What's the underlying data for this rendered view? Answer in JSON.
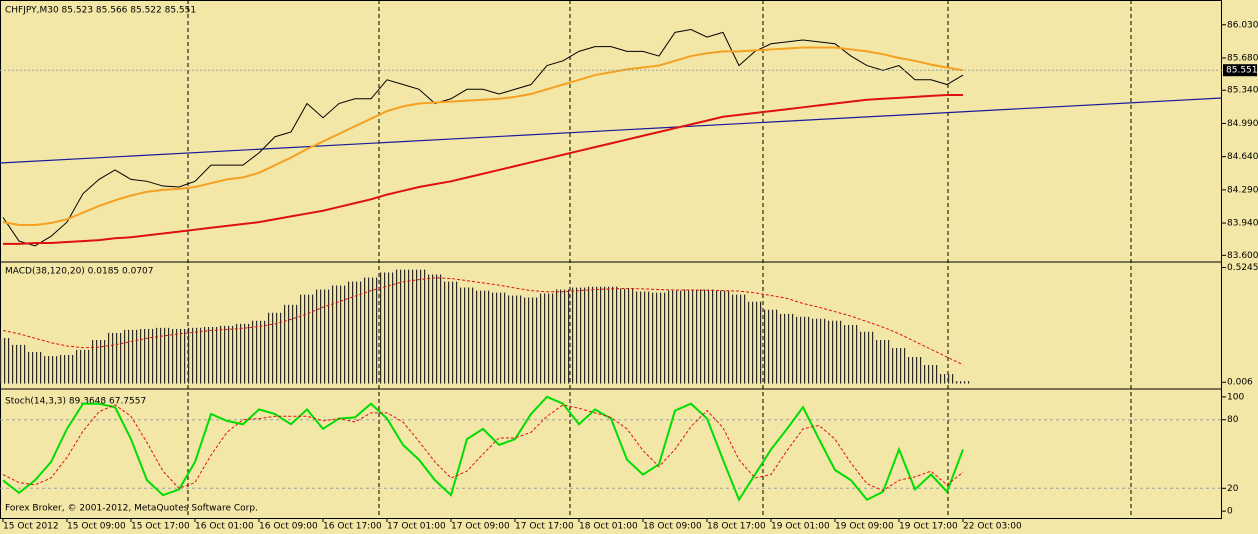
{
  "chart_data": [
    {
      "type": "line",
      "title": "CHFJPY,M30  85.523 85.566 85.522 85.551",
      "footer": "Forex Broker, © 2001-2012, MetaQuotes Software Corp.",
      "categories": [
        "15 Oct 2012",
        null,
        null,
        null,
        "15 Oct 09:00",
        null,
        null,
        null,
        "15 Oct 17:00",
        null,
        null,
        null,
        "16 Oct 01:00",
        null,
        null,
        null,
        "16 Oct 09:00",
        null,
        null,
        null,
        "16 Oct 17:00",
        null,
        null,
        null,
        "17 Oct 01:00",
        null,
        null,
        null,
        "17 Oct 09:00",
        null,
        null,
        null,
        "17 Oct 17:00",
        null,
        null,
        null,
        "18 Oct 01:00",
        null,
        null,
        null,
        "18 Oct 09:00",
        null,
        null,
        null,
        "18 Oct 17:00",
        null,
        null,
        null,
        "19 Oct 01:00",
        null,
        null,
        null,
        "19 Oct 09:00",
        null,
        null,
        null,
        "19 Oct 17:00",
        null,
        null,
        null,
        "22 Oct 03:00"
      ],
      "ylim": [
        83.54,
        86.27
      ],
      "yticks": [
        {
          "value": 86.03,
          "label": "86.030"
        },
        {
          "value": 85.68,
          "label": "85.680"
        },
        {
          "value": 85.34,
          "label": "85.340"
        },
        {
          "value": 84.99,
          "label": "84.990"
        },
        {
          "value": 84.64,
          "label": "84.640"
        },
        {
          "value": 84.29,
          "label": "84.290"
        },
        {
          "value": 83.94,
          "label": "83.940"
        },
        {
          "value": 83.6,
          "label": "83.600"
        }
      ],
      "last_price": 85.551,
      "series": [
        {
          "color": "#000000",
          "values": [
            84.0,
            83.75,
            83.7,
            83.8,
            83.95,
            84.25,
            84.4,
            84.5,
            84.4,
            84.38,
            84.33,
            84.32,
            84.38,
            84.55,
            84.55,
            84.55,
            84.68,
            84.85,
            84.9,
            85.2,
            85.05,
            85.2,
            85.25,
            85.25,
            85.45,
            85.4,
            85.35,
            85.2,
            85.25,
            85.35,
            85.35,
            85.3,
            85.35,
            85.4,
            85.6,
            85.65,
            85.75,
            85.8,
            85.8,
            85.75,
            85.75,
            85.7,
            85.95,
            85.98,
            85.9,
            85.95,
            85.6,
            85.75,
            85.83,
            85.85,
            85.87,
            85.85,
            85.83,
            85.7,
            85.6,
            85.55,
            85.6,
            85.45,
            85.45,
            85.4,
            85.5
          ]
        },
        {
          "color": "#f5a020",
          "values": [
            83.95,
            83.92,
            83.92,
            83.94,
            83.98,
            84.05,
            84.12,
            84.18,
            84.23,
            84.27,
            84.29,
            84.3,
            84.32,
            84.36,
            84.4,
            84.42,
            84.47,
            84.55,
            84.63,
            84.72,
            84.8,
            84.88,
            84.96,
            85.04,
            85.12,
            85.17,
            85.2,
            85.21,
            85.22,
            85.23,
            85.24,
            85.25,
            85.27,
            85.3,
            85.35,
            85.4,
            85.45,
            85.5,
            85.53,
            85.56,
            85.58,
            85.6,
            85.65,
            85.7,
            85.73,
            85.75,
            85.75,
            85.76,
            85.77,
            85.78,
            85.79,
            85.79,
            85.79,
            85.77,
            85.75,
            85.72,
            85.68,
            85.65,
            85.61,
            85.58,
            85.55
          ]
        },
        {
          "color": "#e01010",
          "values": [
            83.72,
            83.72,
            83.73,
            83.73,
            83.74,
            83.75,
            83.76,
            83.78,
            83.79,
            83.81,
            83.83,
            83.85,
            83.87,
            83.89,
            83.91,
            83.93,
            83.95,
            83.98,
            84.01,
            84.04,
            84.07,
            84.11,
            84.15,
            84.19,
            84.24,
            84.28,
            84.32,
            84.35,
            84.38,
            84.42,
            84.46,
            84.5,
            84.54,
            84.58,
            84.62,
            84.66,
            84.7,
            84.74,
            84.78,
            84.82,
            84.86,
            84.9,
            84.94,
            84.98,
            85.02,
            85.06,
            85.08,
            85.1,
            85.12,
            85.14,
            85.16,
            85.18,
            85.2,
            85.22,
            85.24,
            85.25,
            85.26,
            85.27,
            85.28,
            85.29,
            85.29
          ]
        }
      ]
    },
    {
      "type": "bar",
      "title": "MACD(38,120,20) 0.0185 0.0707",
      "ylim": [
        -0.02,
        0.545
      ],
      "yticks": [
        0.5245,
        0.006
      ],
      "series": [
        {
          "color": "#2a2a2a",
          "kind": "bar",
          "values": [
            0.206,
            0.175,
            0.143,
            0.124,
            0.129,
            0.152,
            0.197,
            0.229,
            0.243,
            0.247,
            0.252,
            0.247,
            0.252,
            0.256,
            0.261,
            0.27,
            0.284,
            0.32,
            0.356,
            0.402,
            0.425,
            0.443,
            0.461,
            0.479,
            0.502,
            0.515,
            0.515,
            0.493,
            0.461,
            0.434,
            0.42,
            0.411,
            0.398,
            0.389,
            0.407,
            0.425,
            0.434,
            0.438,
            0.438,
            0.429,
            0.416,
            0.411,
            0.42,
            0.425,
            0.425,
            0.42,
            0.402,
            0.37,
            0.334,
            0.315,
            0.302,
            0.293,
            0.284,
            0.265,
            0.234,
            0.197,
            0.161,
            0.12,
            0.084,
            0.043,
            0.011
          ]
        },
        {
          "color": "#e01010",
          "kind": "line",
          "dashed": true,
          "values": [
            0.24,
            0.225,
            0.205,
            0.185,
            0.17,
            0.162,
            0.165,
            0.175,
            0.19,
            0.205,
            0.215,
            0.225,
            0.232,
            0.24,
            0.245,
            0.25,
            0.258,
            0.27,
            0.29,
            0.315,
            0.345,
            0.37,
            0.395,
            0.42,
            0.44,
            0.46,
            0.47,
            0.478,
            0.475,
            0.465,
            0.455,
            0.445,
            0.432,
            0.42,
            0.415,
            0.415,
            0.42,
            0.425,
            0.428,
            0.43,
            0.428,
            0.425,
            0.423,
            0.423,
            0.422,
            0.42,
            0.418,
            0.41,
            0.398,
            0.385,
            0.362,
            0.345,
            0.325,
            0.305,
            0.28,
            0.255,
            0.225,
            0.19,
            0.155,
            0.12,
            0.085
          ]
        }
      ]
    },
    {
      "type": "line",
      "title": "Stoch(14,3,3) 89.3648 67.7557",
      "ylim": [
        -6,
        106
      ],
      "yticks": [
        100,
        80,
        20,
        0
      ],
      "levels": [
        80,
        20
      ],
      "series": [
        {
          "color": "#00dd00",
          "values": [
            27,
            16,
            27,
            43,
            72,
            94,
            94,
            91,
            63,
            27,
            14,
            19,
            43,
            85,
            79,
            76,
            89,
            85,
            76,
            89,
            72,
            81,
            82,
            94,
            81,
            58,
            45,
            27,
            14,
            63,
            72,
            58,
            63,
            85,
            100,
            94,
            76,
            89,
            81,
            45,
            32,
            41,
            88,
            94,
            81,
            45,
            10,
            32,
            54,
            72,
            91,
            63,
            36,
            27,
            10,
            17,
            54,
            19,
            32,
            17,
            54
          ]
        },
        {
          "color": "#e01010",
          "dashed": true,
          "values": [
            32,
            25,
            23,
            29,
            47,
            70,
            87,
            93,
            83,
            60,
            35,
            20,
            25,
            49,
            69,
            80,
            81,
            83,
            83,
            83,
            79,
            81,
            78,
            86,
            86,
            78,
            61,
            43,
            29,
            35,
            50,
            64,
            64,
            69,
            83,
            93,
            90,
            86,
            82,
            72,
            53,
            39,
            54,
            74,
            88,
            73,
            45,
            29,
            32,
            53,
            72,
            75,
            63,
            42,
            24,
            18,
            27,
            30,
            35,
            23,
            34
          ]
        }
      ]
    }
  ]
}
